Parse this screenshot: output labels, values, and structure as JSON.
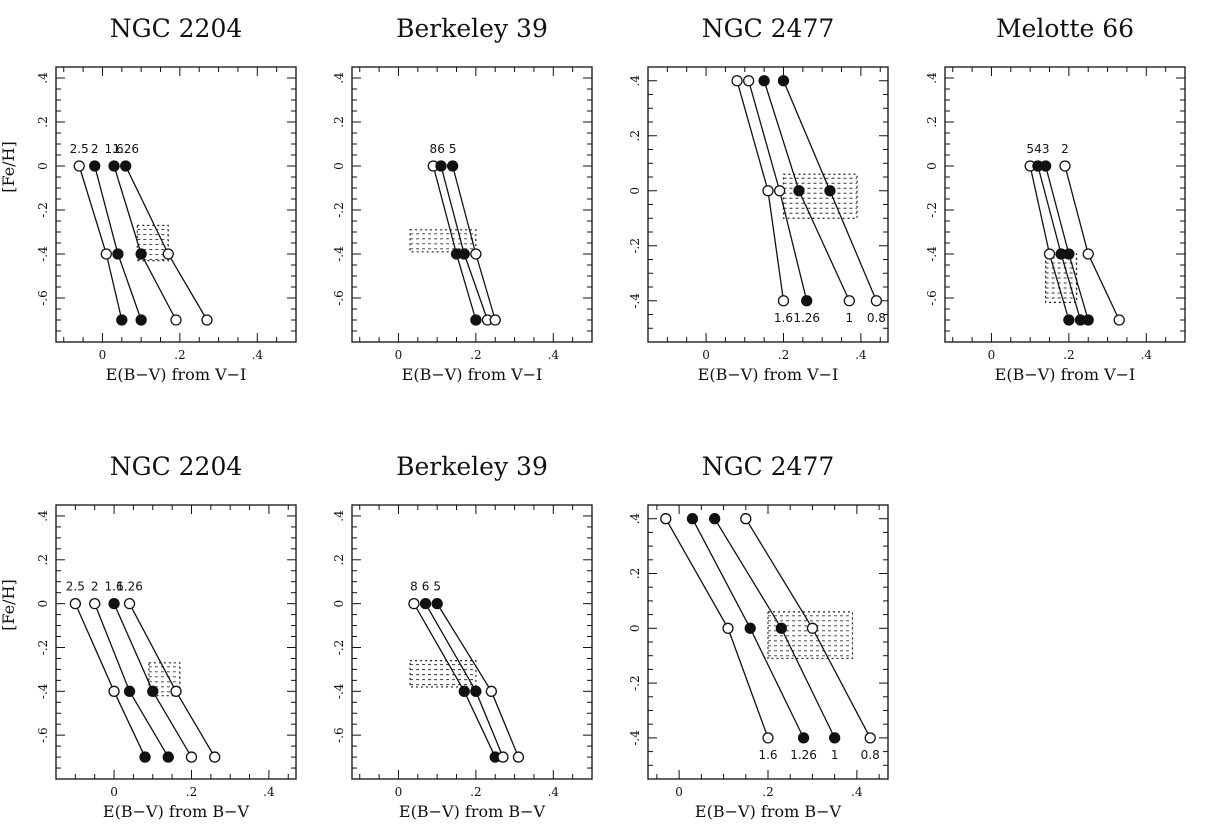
{
  "chart_data": [
    {
      "id": "ngc2204-vi",
      "title": "NGC 2204",
      "xlabel": "E(B−V) from V−I",
      "ylabel": "[Fe/H]",
      "type": "line",
      "xlim": [
        -0.12,
        0.5
      ],
      "ylim": [
        -0.8,
        0.45
      ],
      "xticks": [
        0,
        0.2,
        0.4
      ],
      "yticks": [
        -0.6,
        -0.4,
        -0.2,
        0,
        0.2,
        0.4
      ],
      "series": [
        {
          "name": "2.5",
          "label_at": "top",
          "points": [
            {
              "x": -0.06,
              "y": 0,
              "filled": false
            },
            {
              "x": 0.01,
              "y": -0.4,
              "filled": false
            },
            {
              "x": 0.05,
              "y": -0.7,
              "filled": true
            }
          ]
        },
        {
          "name": "2",
          "label_at": "top",
          "points": [
            {
              "x": -0.02,
              "y": 0,
              "filled": true
            },
            {
              "x": 0.04,
              "y": -0.4,
              "filled": true
            },
            {
              "x": 0.1,
              "y": -0.7,
              "filled": true
            }
          ]
        },
        {
          "name": "1.6",
          "label_at": "top",
          "points": [
            {
              "x": 0.03,
              "y": 0,
              "filled": true
            },
            {
              "x": 0.1,
              "y": -0.4,
              "filled": true
            },
            {
              "x": 0.19,
              "y": -0.7,
              "filled": false
            }
          ]
        },
        {
          "name": "1.26",
          "label_at": "top",
          "points": [
            {
              "x": 0.06,
              "y": 0,
              "filled": true
            },
            {
              "x": 0.17,
              "y": -0.4,
              "filled": false
            },
            {
              "x": 0.27,
              "y": -0.7,
              "filled": false
            }
          ]
        }
      ],
      "box": {
        "x": [
          0.09,
          0.17
        ],
        "y": [
          -0.43,
          -0.27
        ]
      }
    },
    {
      "id": "berkeley39-vi",
      "title": "Berkeley 39",
      "xlabel": "E(B−V) from V−I",
      "ylabel": "",
      "type": "line",
      "xlim": [
        -0.12,
        0.5
      ],
      "ylim": [
        -0.8,
        0.45
      ],
      "xticks": [
        0,
        0.2,
        0.4
      ],
      "yticks": [
        -0.6,
        -0.4,
        -0.2,
        0,
        0.2,
        0.4
      ],
      "series": [
        {
          "name": "8",
          "label_at": "top",
          "points": [
            {
              "x": 0.09,
              "y": 0,
              "filled": false
            },
            {
              "x": 0.15,
              "y": -0.4,
              "filled": true
            },
            {
              "x": 0.2,
              "y": -0.7,
              "filled": true
            }
          ]
        },
        {
          "name": "6",
          "label_at": "top",
          "points": [
            {
              "x": 0.11,
              "y": 0,
              "filled": true
            },
            {
              "x": 0.17,
              "y": -0.4,
              "filled": true
            },
            {
              "x": 0.23,
              "y": -0.7,
              "filled": false
            }
          ]
        },
        {
          "name": "5",
          "label_at": "top",
          "points": [
            {
              "x": 0.14,
              "y": 0,
              "filled": true
            },
            {
              "x": 0.2,
              "y": -0.4,
              "filled": false
            },
            {
              "x": 0.25,
              "y": -0.7,
              "filled": false
            }
          ]
        }
      ],
      "box": {
        "x": [
          0.03,
          0.2
        ],
        "y": [
          -0.39,
          -0.29
        ]
      }
    },
    {
      "id": "ngc2477-vi",
      "title": "NGC 2477",
      "xlabel": "E(B−V) from V−I",
      "ylabel": "",
      "type": "line",
      "xlim": [
        -0.15,
        0.47
      ],
      "ylim": [
        -0.55,
        0.45
      ],
      "xticks": [
        0,
        0.2,
        0.4
      ],
      "yticks": [
        -0.4,
        -0.2,
        0,
        0.2,
        0.4
      ],
      "series": [
        {
          "name": "1.6",
          "label_at": "bottom",
          "points": [
            {
              "x": 0.08,
              "y": 0.4,
              "filled": false
            },
            {
              "x": 0.16,
              "y": 0,
              "filled": false
            },
            {
              "x": 0.2,
              "y": -0.4,
              "filled": false
            }
          ]
        },
        {
          "name": "1.26",
          "label_at": "bottom",
          "points": [
            {
              "x": 0.11,
              "y": 0.4,
              "filled": false
            },
            {
              "x": 0.19,
              "y": 0,
              "filled": false
            },
            {
              "x": 0.26,
              "y": -0.4,
              "filled": true
            }
          ]
        },
        {
          "name": "1",
          "label_at": "bottom",
          "points": [
            {
              "x": 0.15,
              "y": 0.4,
              "filled": true
            },
            {
              "x": 0.24,
              "y": 0,
              "filled": true
            },
            {
              "x": 0.37,
              "y": -0.4,
              "filled": false
            }
          ]
        },
        {
          "name": "0.8",
          "label_at": "bottom",
          "points": [
            {
              "x": 0.2,
              "y": 0.4,
              "filled": true
            },
            {
              "x": 0.32,
              "y": 0,
              "filled": true
            },
            {
              "x": 0.44,
              "y": -0.4,
              "filled": false
            }
          ]
        }
      ],
      "box": {
        "x": [
          0.2,
          0.39
        ],
        "y": [
          -0.1,
          0.06
        ]
      }
    },
    {
      "id": "melotte66-vi",
      "title": "Melotte 66",
      "xlabel": "E(B−V) from V−I",
      "ylabel": "",
      "type": "line",
      "xlim": [
        -0.12,
        0.5
      ],
      "ylim": [
        -0.8,
        0.45
      ],
      "xticks": [
        0,
        0.2,
        0.4
      ],
      "yticks": [
        -0.6,
        -0.4,
        -0.2,
        0,
        0.2,
        0.4
      ],
      "series": [
        {
          "name": "5",
          "label_at": "top",
          "points": [
            {
              "x": 0.1,
              "y": 0,
              "filled": false
            },
            {
              "x": 0.15,
              "y": -0.4,
              "filled": false
            },
            {
              "x": 0.2,
              "y": -0.7,
              "filled": true
            }
          ]
        },
        {
          "name": "4",
          "label_at": "top",
          "points": [
            {
              "x": 0.12,
              "y": 0,
              "filled": true
            },
            {
              "x": 0.18,
              "y": -0.4,
              "filled": true
            },
            {
              "x": 0.23,
              "y": -0.7,
              "filled": true
            }
          ]
        },
        {
          "name": "3",
          "label_at": "top",
          "points": [
            {
              "x": 0.14,
              "y": 0,
              "filled": true
            },
            {
              "x": 0.2,
              "y": -0.4,
              "filled": true
            },
            {
              "x": 0.25,
              "y": -0.7,
              "filled": true
            }
          ]
        },
        {
          "name": "2",
          "label_at": "top",
          "points": [
            {
              "x": 0.19,
              "y": 0,
              "filled": false
            },
            {
              "x": 0.25,
              "y": -0.4,
              "filled": false
            },
            {
              "x": 0.33,
              "y": -0.7,
              "filled": false
            }
          ]
        }
      ],
      "box": {
        "x": [
          0.14,
          0.22
        ],
        "y": [
          -0.62,
          -0.4
        ]
      }
    },
    {
      "id": "ngc2204-bv",
      "title": "NGC 2204",
      "xlabel": "E(B−V) from B−V",
      "ylabel": "[Fe/H]",
      "type": "line",
      "xlim": [
        -0.15,
        0.47
      ],
      "ylim": [
        -0.8,
        0.45
      ],
      "xticks": [
        0,
        0.2,
        0.4
      ],
      "yticks": [
        -0.6,
        -0.4,
        -0.2,
        0,
        0.2,
        0.4
      ],
      "series": [
        {
          "name": "2.5",
          "label_at": "top",
          "points": [
            {
              "x": -0.1,
              "y": 0,
              "filled": false
            },
            {
              "x": 0,
              "y": -0.4,
              "filled": false
            },
            {
              "x": 0.08,
              "y": -0.7,
              "filled": true
            }
          ]
        },
        {
          "name": "2",
          "label_at": "top",
          "points": [
            {
              "x": -0.05,
              "y": 0,
              "filled": false
            },
            {
              "x": 0.04,
              "y": -0.4,
              "filled": true
            },
            {
              "x": 0.14,
              "y": -0.7,
              "filled": true
            }
          ]
        },
        {
          "name": "1.6",
          "label_at": "top",
          "points": [
            {
              "x": 0,
              "y": 0,
              "filled": true
            },
            {
              "x": 0.1,
              "y": -0.4,
              "filled": true
            },
            {
              "x": 0.2,
              "y": -0.7,
              "filled": false
            }
          ]
        },
        {
          "name": "1.26",
          "label_at": "top",
          "points": [
            {
              "x": 0.04,
              "y": 0,
              "filled": false
            },
            {
              "x": 0.16,
              "y": -0.4,
              "filled": false
            },
            {
              "x": 0.26,
              "y": -0.7,
              "filled": false
            }
          ]
        }
      ],
      "box": {
        "x": [
          0.09,
          0.17
        ],
        "y": [
          -0.42,
          -0.27
        ]
      }
    },
    {
      "id": "berkeley39-bv",
      "title": "Berkeley 39",
      "xlabel": "E(B−V) from B−V",
      "ylabel": "",
      "type": "line",
      "xlim": [
        -0.12,
        0.5
      ],
      "ylim": [
        -0.8,
        0.45
      ],
      "xticks": [
        0,
        0.2,
        0.4
      ],
      "yticks": [
        -0.6,
        -0.4,
        -0.2,
        0,
        0.2,
        0.4
      ],
      "series": [
        {
          "name": "8",
          "label_at": "top",
          "points": [
            {
              "x": 0.04,
              "y": 0,
              "filled": false
            },
            {
              "x": 0.17,
              "y": -0.4,
              "filled": true
            },
            {
              "x": 0.25,
              "y": -0.7,
              "filled": true
            }
          ]
        },
        {
          "name": "6",
          "label_at": "top",
          "points": [
            {
              "x": 0.07,
              "y": 0,
              "filled": true
            },
            {
              "x": 0.2,
              "y": -0.4,
              "filled": true
            },
            {
              "x": 0.27,
              "y": -0.7,
              "filled": false
            }
          ]
        },
        {
          "name": "5",
          "label_at": "top",
          "points": [
            {
              "x": 0.1,
              "y": 0,
              "filled": true
            },
            {
              "x": 0.24,
              "y": -0.4,
              "filled": false
            },
            {
              "x": 0.31,
              "y": -0.7,
              "filled": false
            }
          ]
        }
      ],
      "box": {
        "x": [
          0.03,
          0.2
        ],
        "y": [
          -0.38,
          -0.26
        ]
      }
    },
    {
      "id": "ngc2477-bv",
      "title": "NGC 2477",
      "xlabel": "E(B−V) from B−V",
      "ylabel": "",
      "type": "line",
      "xlim": [
        -0.07,
        0.47
      ],
      "ylim": [
        -0.55,
        0.45
      ],
      "xticks": [
        0,
        0.2,
        0.4
      ],
      "yticks": [
        -0.4,
        -0.2,
        0,
        0.2,
        0.4
      ],
      "series": [
        {
          "name": "1.6",
          "label_at": "bottom",
          "points": [
            {
              "x": -0.03,
              "y": 0.4,
              "filled": false
            },
            {
              "x": 0.11,
              "y": 0,
              "filled": false
            },
            {
              "x": 0.2,
              "y": -0.4,
              "filled": false
            }
          ]
        },
        {
          "name": "1.26",
          "label_at": "bottom",
          "points": [
            {
              "x": 0.03,
              "y": 0.4,
              "filled": true
            },
            {
              "x": 0.16,
              "y": 0,
              "filled": true
            },
            {
              "x": 0.28,
              "y": -0.4,
              "filled": true
            }
          ]
        },
        {
          "name": "1",
          "label_at": "bottom",
          "points": [
            {
              "x": 0.08,
              "y": 0.4,
              "filled": true
            },
            {
              "x": 0.23,
              "y": 0,
              "filled": true
            },
            {
              "x": 0.35,
              "y": -0.4,
              "filled": true
            }
          ]
        },
        {
          "name": "0.8",
          "label_at": "bottom",
          "points": [
            {
              "x": 0.15,
              "y": 0.4,
              "filled": false
            },
            {
              "x": 0.3,
              "y": 0,
              "filled": false
            },
            {
              "x": 0.43,
              "y": -0.4,
              "filled": false
            }
          ]
        }
      ],
      "box": {
        "x": [
          0.2,
          0.39
        ],
        "y": [
          -0.11,
          0.06
        ]
      }
    }
  ]
}
